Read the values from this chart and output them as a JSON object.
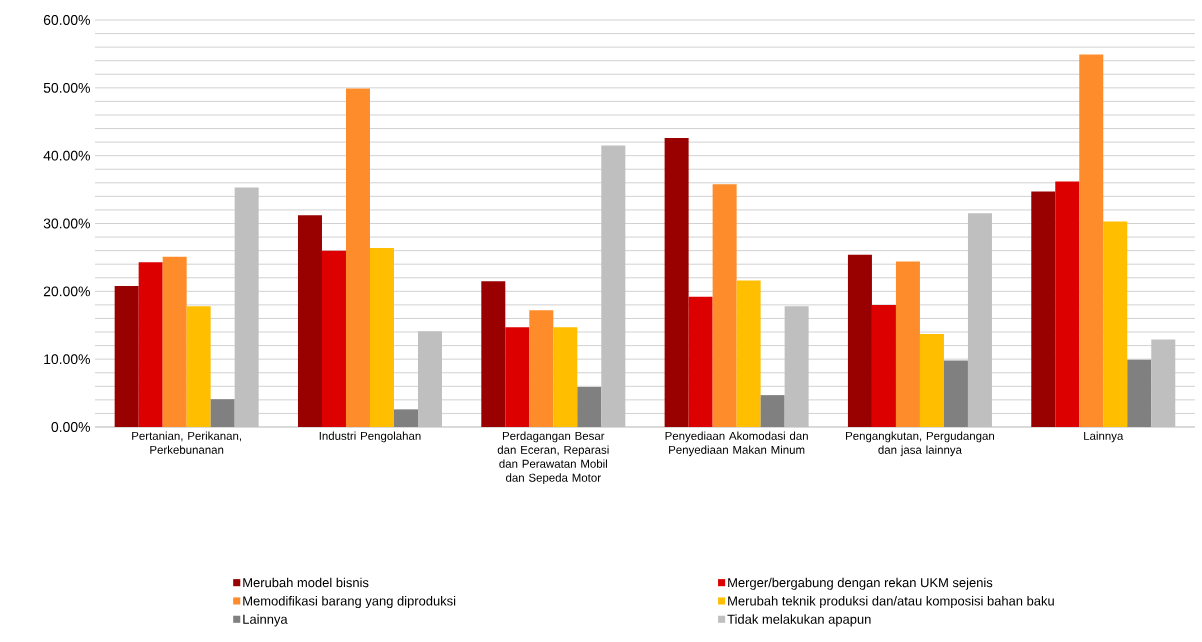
{
  "chart_data": {
    "type": "bar",
    "categories": [
      "Pertanian, Perikanan, Perkebunanan",
      "Industri Pengolahan",
      "Perdagangan Besar dan Eceran, Reparasi dan Perawatan Mobil dan Sepeda Motor",
      "Penyediaan Akomodasi dan Penyediaan Makan Minum",
      "Pengangkutan, Pergudangan dan jasa lainnya",
      "Lainnya"
    ],
    "series": [
      {
        "name": "Merubah model bisnis",
        "color": "#990000",
        "values": [
          20.8,
          31.2,
          21.5,
          42.6,
          25.4,
          34.7
        ]
      },
      {
        "name": "Merger/bergabung dengan rekan UKM sejenis",
        "color": "#dd0000",
        "values": [
          24.3,
          26.0,
          14.7,
          19.2,
          18.0,
          36.2
        ]
      },
      {
        "name": "Memodifikasi barang yang diproduksi",
        "color": "#ff8c2a",
        "values": [
          25.1,
          49.9,
          17.2,
          35.8,
          24.4,
          54.9
        ]
      },
      {
        "name": "Merubah teknik produksi dan/atau komposisi bahan baku",
        "color": "#ffbe00",
        "values": [
          17.8,
          26.4,
          14.7,
          21.6,
          13.7,
          30.3
        ]
      },
      {
        "name": "Lainnya",
        "color": "#808080",
        "values": [
          4.1,
          2.6,
          5.9,
          4.7,
          9.8,
          9.9
        ]
      },
      {
        "name": "Tidak melakukan apapun",
        "color": "#bfbfbf",
        "values": [
          35.3,
          14.1,
          41.5,
          17.8,
          31.5,
          12.9
        ]
      }
    ],
    "ylim": [
      0,
      60
    ],
    "yticks": [
      {
        "value": 0,
        "label": "0.00%"
      },
      {
        "value": 10,
        "label": "10.00%"
      },
      {
        "value": 20,
        "label": "20.00%"
      },
      {
        "value": 30,
        "label": "30.00%"
      },
      {
        "value": 40,
        "label": "40.00%"
      },
      {
        "value": 50,
        "label": "50.00%"
      },
      {
        "value": 60,
        "label": "60.00%"
      }
    ],
    "grid": "y",
    "legend": "bottom"
  }
}
